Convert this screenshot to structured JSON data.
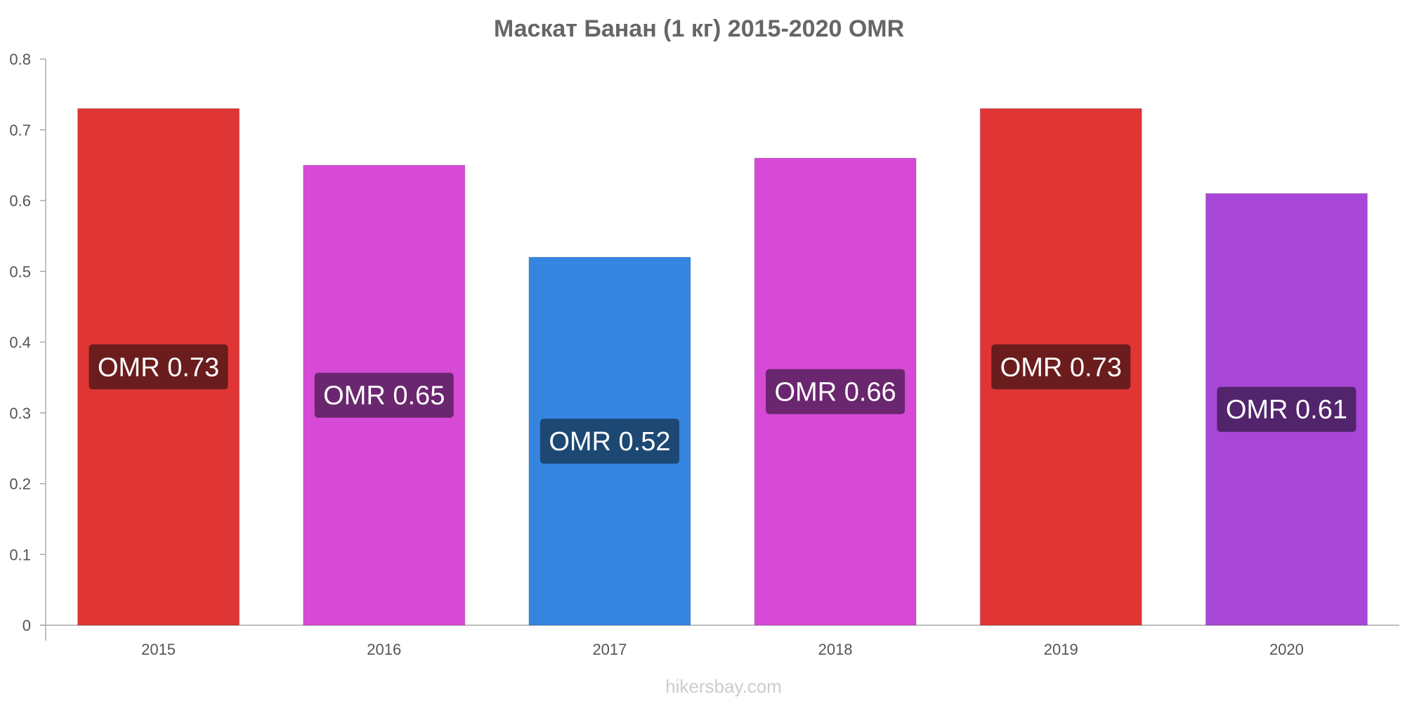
{
  "chart_data": {
    "type": "bar",
    "title": "Маскат Банан (1 кг) 2015-2020 OMR",
    "xlabel": "",
    "ylabel": "",
    "categories": [
      "2015",
      "2016",
      "2017",
      "2018",
      "2019",
      "2020"
    ],
    "values": [
      0.73,
      0.65,
      0.52,
      0.66,
      0.73,
      0.61
    ],
    "data_labels": [
      "OMR 0.73",
      "OMR 0.65",
      "OMR 0.52",
      "OMR 0.66",
      "OMR 0.73",
      "OMR 0.61"
    ],
    "bar_colors": [
      "#e03535",
      "#d64ad6",
      "#3584e0",
      "#d64ad6",
      "#e03535",
      "#a846d8"
    ],
    "label_bg_colors": [
      "#6b1d1d",
      "#6b2670",
      "#1d4873",
      "#6b2670",
      "#6b1d1d",
      "#51246b"
    ],
    "ylim": [
      0,
      0.8
    ],
    "yticks": [
      "0",
      "0.1",
      "0.2",
      "0.3",
      "0.4",
      "0.5",
      "0.6",
      "0.7",
      "0.8"
    ],
    "grid": false,
    "legend": "none"
  },
  "watermark": "hikersbay.com",
  "colors": {
    "title": "#666666",
    "tick_label": "#555555",
    "axis": "#aaaaaa",
    "watermark": "#cccccc",
    "data_label_text": "#ffffff"
  }
}
